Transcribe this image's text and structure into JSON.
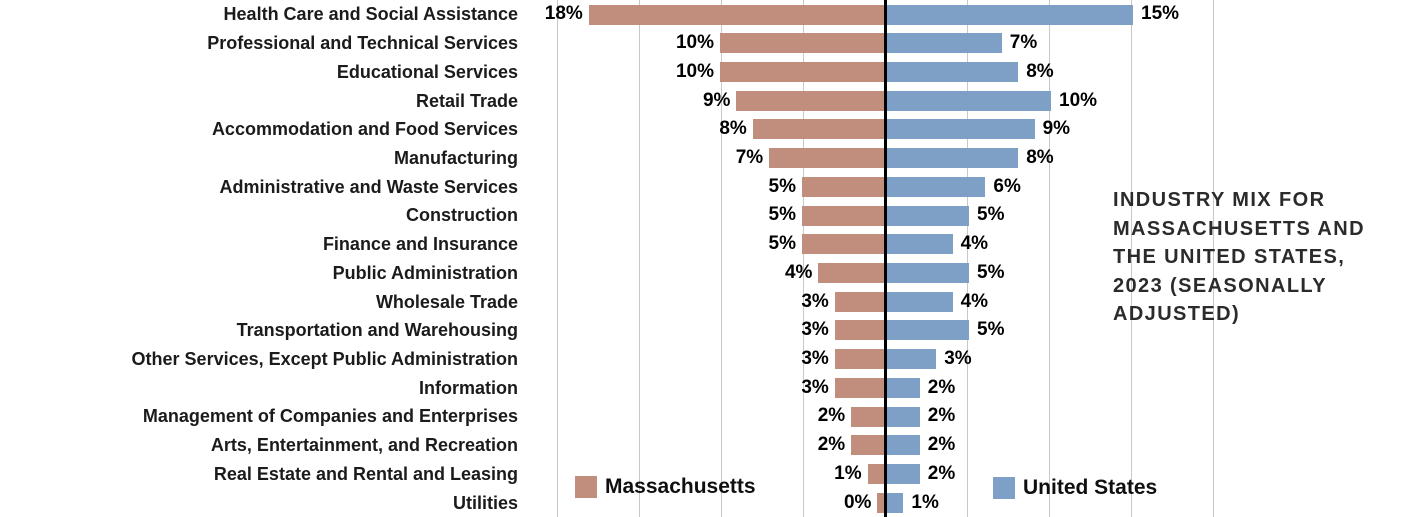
{
  "title": {
    "full": "INDUSTRY MIX FOR MASSACHUSETTS AND THE UNITED STATES, 2023 (SEASONALLY ADJUSTED)",
    "lines": [
      "INDUSTRY MIX FOR",
      "MASSACHUSETTS AND",
      "THE UNITED STATES,",
      "2023 (SEASONALLY",
      "ADJUSTED)"
    ]
  },
  "legend": {
    "massachusetts": {
      "label": "Massachusetts",
      "color": "#c18d7c"
    },
    "united_states": {
      "label": "United States",
      "color": "#7e9fc6"
    }
  },
  "colors": {
    "massachusetts_bar": "#c18d7c",
    "united_states_bar": "#7e9fc6",
    "gridline": "#c8c8c8",
    "zero_axis": "#000000",
    "text": "#1b1b1b"
  },
  "value_suffix": "%",
  "chart_data": {
    "type": "bar",
    "orientation": "horizontal-diverging",
    "title": "INDUSTRY MIX FOR MASSACHUSETTS AND THE UNITED STATES, 2023 (SEASONALLY ADJUSTED)",
    "xlabel": "",
    "ylabel": "",
    "axis": {
      "x_min_pct": -20,
      "x_max_pct": 20,
      "grid_step_pct": 5,
      "gridlines": true,
      "tick_labels_shown": false
    },
    "legend_position": "bottom",
    "categories": [
      "Health Care and Social Assistance",
      "Professional and Technical Services",
      "Educational Services",
      "Retail Trade",
      "Accommodation and Food Services",
      "Manufacturing",
      "Administrative and Waste Services",
      "Construction",
      "Finance and Insurance",
      "Public Administration",
      "Wholesale Trade",
      "Transportation and Warehousing",
      "Other Services, Except Public Administration",
      "Information",
      "Management of Companies and Enterprises",
      "Arts, Entertainment, and Recreation",
      "Real Estate and Rental and Leasing",
      "Utilities"
    ],
    "series": [
      {
        "name": "Massachusetts",
        "side": "left",
        "values": [
          18,
          10,
          10,
          9,
          8,
          7,
          5,
          5,
          5,
          4,
          3,
          3,
          3,
          3,
          2,
          2,
          1,
          0
        ],
        "data_labels": [
          "18%",
          "10%",
          "10%",
          "9%",
          "8%",
          "7%",
          "5%",
          "5%",
          "5%",
          "4%",
          "3%",
          "3%",
          "3%",
          "3%",
          "2%",
          "2%",
          "1%",
          "0%"
        ]
      },
      {
        "name": "United States",
        "side": "right",
        "values": [
          15,
          7,
          8,
          10,
          9,
          8,
          6,
          5,
          4,
          5,
          4,
          5,
          3,
          2,
          2,
          2,
          2,
          1
        ],
        "data_labels": [
          "15%",
          "7%",
          "8%",
          "10%",
          "9%",
          "8%",
          "6%",
          "5%",
          "4%",
          "5%",
          "4%",
          "5%",
          "3%",
          "2%",
          "2%",
          "2%",
          "2%",
          "1%"
        ]
      }
    ],
    "render_overrides": [
      {
        "series": 0,
        "index": 17,
        "bar_pct": 0.4
      }
    ]
  }
}
